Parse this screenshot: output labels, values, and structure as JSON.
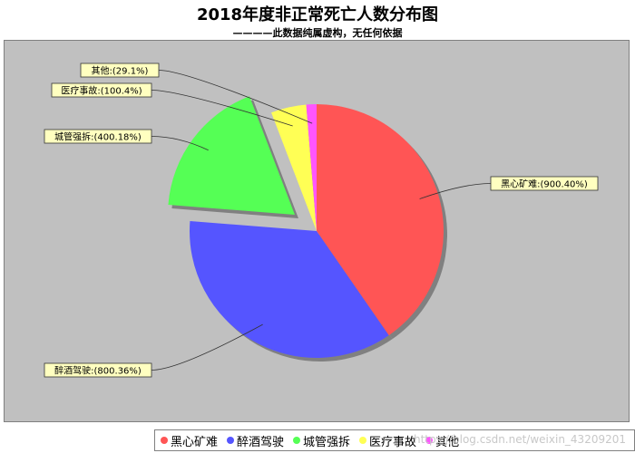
{
  "title": "2018年度非正常死亡人数分布图",
  "subtitle": "————此数据纯属虚构，无任何依据",
  "watermark": "https://blog.csdn.net/weixin_43209201",
  "chart_data": {
    "type": "pie",
    "title": "2018年度非正常死亡人数分布图",
    "subtitle": "————此数据纯属虚构，无任何依据",
    "slices": [
      {
        "name": "黑心矿难",
        "value": 900.4,
        "label": "黑心矿难:(900.40%)",
        "color": "#ff5555",
        "exploded": false
      },
      {
        "name": "醉酒驾驶",
        "value": 800.36,
        "label": "醉酒驾驶:(800.36%)",
        "color": "#5555ff",
        "exploded": false
      },
      {
        "name": "城管强拆",
        "value": 400.18,
        "label": "城管强拆:(400.18%)",
        "color": "#55ff55",
        "exploded": true
      },
      {
        "name": "医疗事故",
        "value": 100.4,
        "label": "医疗事故:(100.4%)",
        "color": "#ffff55",
        "exploded": false
      },
      {
        "name": "其他",
        "value": 29.1,
        "label": "其他:(29.1%)",
        "color": "#ff55ff",
        "exploded": false
      }
    ],
    "legend_position": "bottom",
    "background": "#c0c0c0"
  },
  "legend": [
    {
      "label": "黑心矿难",
      "color": "#ff5555"
    },
    {
      "label": "醉酒驾驶",
      "color": "#5555ff"
    },
    {
      "label": "城管强拆",
      "color": "#55ff55"
    },
    {
      "label": "医疗事故",
      "color": "#ffff55"
    },
    {
      "label": "其他",
      "color": "#ff55ff"
    }
  ]
}
